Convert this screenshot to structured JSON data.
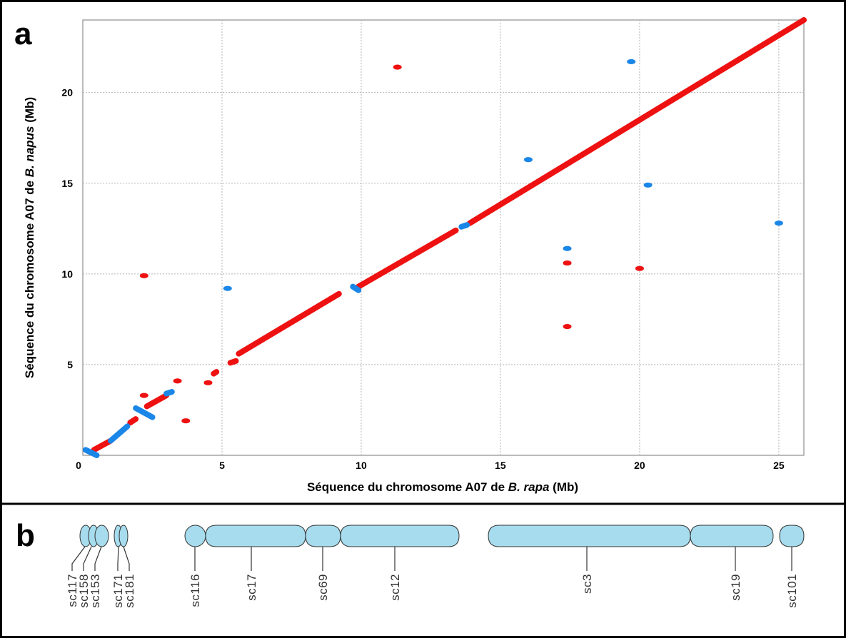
{
  "panel_a": {
    "letter": "a"
  },
  "panel_b": {
    "letter": "b"
  },
  "colors": {
    "red": "#ee1111",
    "blue": "#1a86e8",
    "segment_fill": "#a6dcee",
    "segment_stroke": "#333333",
    "grid": "#b5b5b5"
  },
  "chart_data": {
    "type": "scatter",
    "xlabel_parts": [
      "Séquence du chromosome A07 de ",
      "B. rapa",
      " (Mb)"
    ],
    "ylabel_parts": [
      "Séquence du chromosome A07 de ",
      "B. napus",
      " (Mb)"
    ],
    "xlim": [
      0,
      25.9
    ],
    "ylim": [
      0,
      24
    ],
    "xticks": [
      0,
      5,
      10,
      15,
      20,
      25
    ],
    "yticks": [
      5,
      10,
      15,
      20
    ],
    "grid": true,
    "series": [
      {
        "color": "red",
        "segments": [
          [
            0.4,
            0.3,
            1.0,
            0.8
          ],
          [
            1.7,
            1.8,
            1.9,
            2.0
          ],
          [
            2.3,
            2.7,
            3.0,
            3.3
          ],
          [
            4.7,
            4.5,
            4.8,
            4.6
          ],
          [
            5.3,
            5.1,
            5.5,
            5.2
          ],
          [
            5.6,
            5.6,
            9.2,
            8.9
          ],
          [
            9.9,
            9.3,
            13.4,
            12.4
          ],
          [
            13.9,
            12.8,
            25.9,
            24.0
          ]
        ],
        "points": [
          [
            2.2,
            9.9
          ],
          [
            2.2,
            3.3
          ],
          [
            3.4,
            4.1
          ],
          [
            3.7,
            1.9
          ],
          [
            4.5,
            4.0
          ],
          [
            11.3,
            21.4
          ],
          [
            17.4,
            10.6
          ],
          [
            17.4,
            7.1
          ],
          [
            20.0,
            10.3
          ]
        ]
      },
      {
        "color": "blue",
        "segments": [
          [
            0.1,
            0.3,
            0.5,
            0.0
          ],
          [
            1.0,
            0.8,
            1.6,
            1.6
          ],
          [
            1.9,
            2.6,
            2.5,
            2.1
          ],
          [
            3.0,
            3.4,
            3.2,
            3.5
          ],
          [
            9.7,
            9.3,
            9.9,
            9.1
          ],
          [
            13.6,
            12.6,
            13.8,
            12.7
          ]
        ],
        "points": [
          [
            5.2,
            9.2
          ],
          [
            16.0,
            16.3
          ],
          [
            17.4,
            11.4
          ],
          [
            19.7,
            21.7
          ],
          [
            20.3,
            14.9
          ],
          [
            25.0,
            12.8
          ]
        ]
      }
    ]
  },
  "scaffolds": [
    {
      "label": "sc117"
    },
    {
      "label": "sc158"
    },
    {
      "label": "sc153"
    },
    {
      "label": "sc171"
    },
    {
      "label": "sc181"
    },
    {
      "label": "sc116"
    },
    {
      "label": "sc17"
    },
    {
      "label": "sc69"
    },
    {
      "label": "sc12"
    },
    {
      "label": "sc3"
    },
    {
      "label": "sc19"
    },
    {
      "label": "sc101"
    }
  ]
}
